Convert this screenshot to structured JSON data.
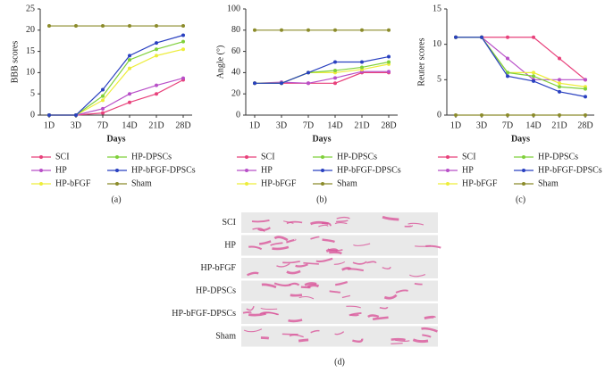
{
  "chart_data": [
    {
      "type": "line",
      "panel_label": "(a)",
      "y_label": "BBB scores",
      "x_label": "Days",
      "categories": [
        "1D",
        "3D",
        "7D",
        "14D",
        "21D",
        "28D"
      ],
      "ylim": [
        0,
        25
      ],
      "yticks": [
        0,
        5,
        10,
        15,
        20,
        25
      ],
      "legend": "bottom",
      "series": [
        {
          "name": "SCI",
          "color": "#e8417b",
          "values": [
            0,
            0,
            0.5,
            3,
            5,
            8.3
          ]
        },
        {
          "name": "HP",
          "color": "#b84fc8",
          "values": [
            0,
            0,
            1.5,
            5,
            7,
            8.7
          ]
        },
        {
          "name": "HP-bFGF",
          "color": "#eded3a",
          "values": [
            0,
            0,
            3.5,
            11,
            14,
            15.5
          ]
        },
        {
          "name": "HP-DPSCs",
          "color": "#7fd03a",
          "values": [
            0,
            0,
            4.5,
            13,
            15.5,
            17.3
          ]
        },
        {
          "name": "HP-bFGF-DPSCs",
          "color": "#2940c0",
          "values": [
            0,
            0,
            6,
            14,
            17,
            18.8
          ]
        },
        {
          "name": "Sham",
          "color": "#8b8b2a",
          "values": [
            21,
            21,
            21,
            21,
            21,
            21
          ]
        }
      ]
    },
    {
      "type": "line",
      "panel_label": "(b)",
      "y_label": "Angle (°)",
      "x_label": "Days",
      "categories": [
        "1D",
        "3D",
        "7D",
        "14D",
        "21D",
        "28D"
      ],
      "ylim": [
        0,
        100
      ],
      "yticks": [
        0,
        20,
        40,
        60,
        80,
        100
      ],
      "legend": "bottom",
      "series": [
        {
          "name": "SCI",
          "color": "#e8417b",
          "values": [
            30,
            30,
            30,
            30,
            40,
            40
          ]
        },
        {
          "name": "HP",
          "color": "#b84fc8",
          "values": [
            30,
            31,
            30,
            35,
            41,
            41
          ]
        },
        {
          "name": "HP-bFGF",
          "color": "#eded3a",
          "values": [
            30,
            30,
            40,
            40,
            43,
            48
          ]
        },
        {
          "name": "HP-DPSCs",
          "color": "#7fd03a",
          "values": [
            30,
            30,
            40,
            42,
            45,
            50
          ]
        },
        {
          "name": "HP-bFGF-DPSCs",
          "color": "#2940c0",
          "values": [
            30,
            30,
            40,
            50,
            50,
            55
          ]
        },
        {
          "name": "Sham",
          "color": "#8b8b2a",
          "values": [
            80,
            80,
            80,
            80,
            80,
            80
          ]
        }
      ]
    },
    {
      "type": "line",
      "panel_label": "(c)",
      "y_label": "Reuter scores",
      "x_label": "Days",
      "categories": [
        "1D",
        "3D",
        "7D",
        "14D",
        "21D",
        "28D"
      ],
      "ylim": [
        0,
        15
      ],
      "yticks": [
        0,
        5,
        10,
        15
      ],
      "legend": "bottom",
      "series": [
        {
          "name": "SCI",
          "color": "#e8417b",
          "values": [
            11,
            11,
            11,
            11,
            8,
            5
          ]
        },
        {
          "name": "HP",
          "color": "#b84fc8",
          "values": [
            11,
            11,
            8,
            5,
            5,
            5
          ]
        },
        {
          "name": "HP-bFGF",
          "color": "#eded3a",
          "values": [
            11,
            11,
            6,
            6,
            4.5,
            4
          ]
        },
        {
          "name": "HP-DPSCs",
          "color": "#7fd03a",
          "values": [
            11,
            11,
            6,
            5.5,
            4,
            3.7
          ]
        },
        {
          "name": "HP-bFGF-DPSCs",
          "color": "#2940c0",
          "values": [
            11,
            11,
            5.5,
            4.8,
            3.3,
            2.6
          ]
        },
        {
          "name": "Sham",
          "color": "#8b8b2a",
          "values": [
            0,
            0,
            0,
            0,
            0,
            0
          ]
        }
      ]
    }
  ],
  "footprints": {
    "panel_label": "(d)",
    "rows": [
      "SCI",
      "HP",
      "HP-bFGF",
      "HP-DPSCs",
      "HP-bFGF-DPSCs",
      "Sham"
    ]
  }
}
